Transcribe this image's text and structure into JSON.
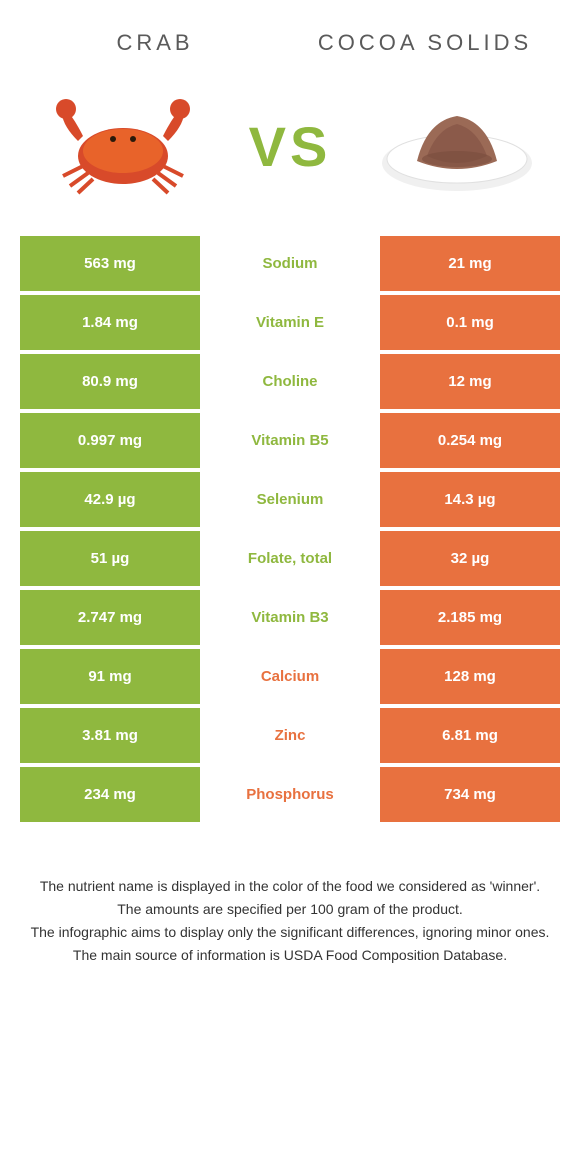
{
  "header": {
    "left_title": "CRAB",
    "right_title": "COCOA SOLIDS",
    "vs": "VS"
  },
  "colors": {
    "green": "#8fb83f",
    "orange": "#e8713f",
    "crab_red": "#d84a2a",
    "cocoa_brown": "#8b5a4a",
    "plate": "#e8e8e8"
  },
  "table": {
    "rows": [
      {
        "left": "563 mg",
        "label": "Sodium",
        "right": "21 mg",
        "winner": "left"
      },
      {
        "left": "1.84 mg",
        "label": "Vitamin E",
        "right": "0.1 mg",
        "winner": "left"
      },
      {
        "left": "80.9 mg",
        "label": "Choline",
        "right": "12 mg",
        "winner": "left"
      },
      {
        "left": "0.997 mg",
        "label": "Vitamin B5",
        "right": "0.254 mg",
        "winner": "left"
      },
      {
        "left": "42.9 µg",
        "label": "Selenium",
        "right": "14.3 µg",
        "winner": "left"
      },
      {
        "left": "51 µg",
        "label": "Folate, total",
        "right": "32 µg",
        "winner": "left"
      },
      {
        "left": "2.747 mg",
        "label": "Vitamin B3",
        "right": "2.185 mg",
        "winner": "left"
      },
      {
        "left": "91 mg",
        "label": "Calcium",
        "right": "128 mg",
        "winner": "right"
      },
      {
        "left": "3.81 mg",
        "label": "Zinc",
        "right": "6.81 mg",
        "winner": "right"
      },
      {
        "left": "234 mg",
        "label": "Phosphorus",
        "right": "734 mg",
        "winner": "right"
      }
    ]
  },
  "footer": {
    "line1": "The nutrient name is displayed in the color of the food we considered as 'winner'.",
    "line2": "The amounts are specified per 100 gram of the product.",
    "line3": "The infographic aims to display only the significant differences, ignoring minor ones.",
    "line4": "The main source of information is USDA Food Composition Database."
  }
}
